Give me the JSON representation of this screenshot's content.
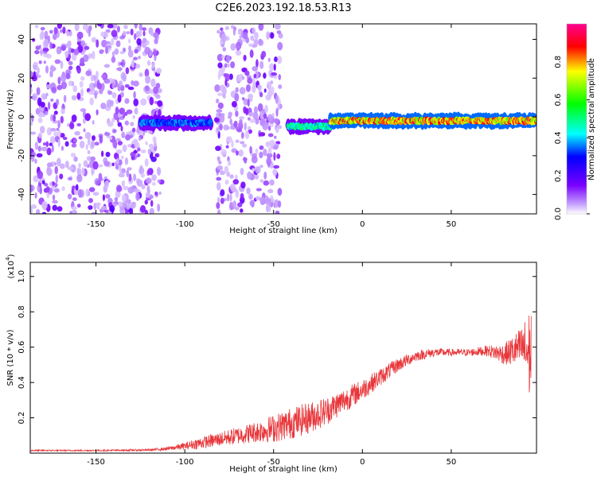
{
  "title": "C2E6.2023.192.18.53.R13",
  "chart_data": [
    {
      "type": "heatmap",
      "xlabel": "Height of straight line (km)",
      "ylabel": "Frequency (Hz)",
      "xlim": [
        -187,
        98
      ],
      "ylim": [
        -50,
        48
      ],
      "x_ticks": [
        -150,
        -100,
        -50,
        0,
        50
      ],
      "y_ticks": [
        40,
        20,
        0,
        -20,
        -40
      ],
      "colorbar": {
        "label": "Normalized spectral amplitude",
        "range": [
          0,
          1
        ],
        "ticks": [
          "0.0",
          "0.2",
          "0.4",
          "0.6",
          "0.8"
        ],
        "colormap": [
          "#ffffff",
          "#7a00ff",
          "#0000ff",
          "#00ffff",
          "#00ff00",
          "#ffff00",
          "#ff0000",
          "#ff00a0"
        ]
      },
      "regions": [
        {
          "x_range": [
            -187,
            -113
          ],
          "y_range": [
            -50,
            48
          ],
          "amplitude": 0.05,
          "note": "scattered noise"
        },
        {
          "x_range": [
            -82,
            -46
          ],
          "y_range": [
            -50,
            48
          ],
          "amplitude": 0.05,
          "note": "scattered noise"
        },
        {
          "x_range": [
            -125,
            -85
          ],
          "y_center": -3,
          "amplitude": 0.4
        },
        {
          "x_range": [
            -42,
            -18
          ],
          "y_center": -5,
          "amplitude": 0.55
        },
        {
          "x_range": [
            -18,
            98
          ],
          "y_center": -2,
          "amplitude": 0.95
        }
      ]
    },
    {
      "type": "line",
      "xlabel": "Height of straight line (km)",
      "ylabel": "SNR (10 * v/v)",
      "y_multiplier": "(x10^4)",
      "multiplier_base": "(x10",
      "multiplier_exp": "4",
      "multiplier_close": ")",
      "xlim": [
        -187,
        98
      ],
      "ylim": [
        0,
        1.08
      ],
      "x_ticks": [
        -150,
        -100,
        -50,
        0,
        50
      ],
      "y_ticks": [
        0.2,
        0.4,
        0.6,
        0.8,
        1.0
      ],
      "color": "#e8363a",
      "trend": {
        "x": [
          -187,
          -150,
          -120,
          -110,
          -100,
          -90,
          -80,
          -70,
          -60,
          -50,
          -40,
          -30,
          -20,
          -10,
          0,
          10,
          20,
          30,
          40,
          50,
          60,
          70,
          80,
          90,
          95
        ],
        "y": [
          0.015,
          0.015,
          0.018,
          0.025,
          0.04,
          0.06,
          0.08,
          0.1,
          0.12,
          0.14,
          0.17,
          0.2,
          0.24,
          0.3,
          0.36,
          0.43,
          0.5,
          0.55,
          0.57,
          0.57,
          0.57,
          0.58,
          0.56,
          0.6,
          0.55
        ],
        "noise": [
          0.004,
          0.004,
          0.006,
          0.01,
          0.02,
          0.035,
          0.04,
          0.05,
          0.06,
          0.08,
          0.09,
          0.09,
          0.08,
          0.07,
          0.06,
          0.05,
          0.04,
          0.03,
          0.025,
          0.02,
          0.02,
          0.03,
          0.06,
          0.12,
          0.3
        ]
      }
    }
  ]
}
